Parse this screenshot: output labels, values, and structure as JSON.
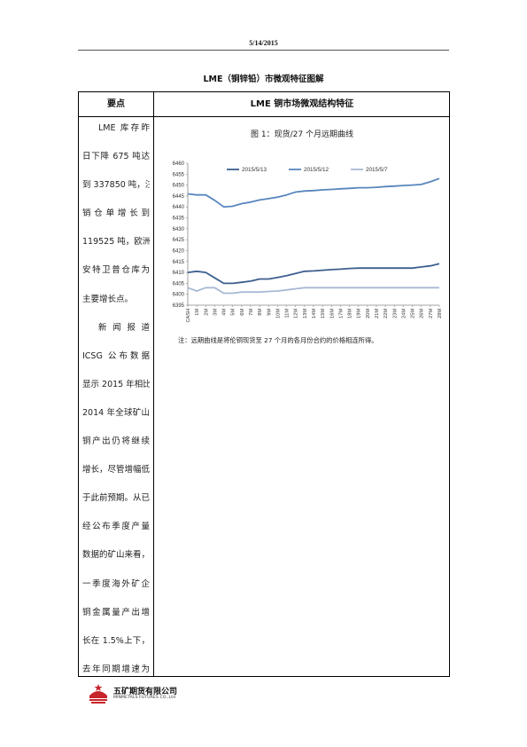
{
  "header": {
    "date": "5/14/2015"
  },
  "title": "LME（铜锌铅）市微观特征图解",
  "table": {
    "left_header": "要点",
    "right_header": "LME 铜市场微观结构特征",
    "left_lines": [
      "LME 库存昨",
      "日下降 675 吨达",
      "到 337850 吨，注",
      "销仓单增长到",
      "119525 吨，欧洲",
      "安特卫普仓库为",
      "主要增长点。",
      "新闻报道",
      "ICSG 公布数据",
      "显示 2015 年相比",
      "2014 年全球矿山",
      "铜产出仍将继续",
      "增长，尽管增幅低",
      "于此前预期。从已",
      "经公布季度产量",
      "数据的矿山来看，",
      "一季度海外矿企",
      "铜金属量产出增",
      "长在 1.5%上下，",
      "去年同期增速为"
    ]
  },
  "figure": {
    "caption": "图 1：现货/27 个月远期曲线",
    "note": "注：远期曲线是将伦铜现货至 27 个月的各月份合约的价格相连所得。"
  },
  "chart_data": {
    "type": "line",
    "categories": [
      "CASH",
      "1M",
      "2M",
      "3M",
      "4M",
      "5M",
      "6M",
      "7M",
      "8M",
      "9M",
      "10M",
      "11M",
      "12M",
      "13M",
      "14M",
      "15M",
      "16M",
      "17M",
      "18M",
      "19M",
      "20M",
      "21M",
      "22M",
      "23M",
      "24M",
      "25M",
      "26M",
      "27M",
      "28M"
    ],
    "ylim": [
      6395,
      6460
    ],
    "yticks": [
      6395,
      6400,
      6405,
      6410,
      6415,
      6420,
      6425,
      6430,
      6435,
      6440,
      6445,
      6450,
      6455,
      6460
    ],
    "grid": false,
    "legend": "top",
    "series": [
      {
        "name": "2015/5/13",
        "color": "#3d5f8f",
        "values": [
          6410,
          6410.5,
          6410,
          6407.5,
          6405,
          6405,
          6405.5,
          6406,
          6407,
          6407,
          6407.7,
          6408.5,
          6409.5,
          6410.5,
          6410.7,
          6411,
          6411.3,
          6411.5,
          6411.8,
          6412,
          6412,
          6412,
          6412,
          6412,
          6412,
          6412,
          6412.5,
          6413,
          6414
        ]
      },
      {
        "name": "2015/5/12",
        "color": "#5886bd",
        "values": [
          6446,
          6445.5,
          6445.5,
          6443,
          6440,
          6440.3,
          6441.5,
          6442.2,
          6443.2,
          6443.8,
          6444.5,
          6445.5,
          6446.8,
          6447.3,
          6447.5,
          6447.8,
          6448,
          6448.3,
          6448.5,
          6448.8,
          6448.8,
          6449,
          6449.3,
          6449.5,
          6449.8,
          6450,
          6450.3,
          6451.5,
          6453
        ]
      },
      {
        "name": "2015/5/7",
        "color": "#a7b9d4",
        "values": [
          6403,
          6401.5,
          6403,
          6403,
          6400.5,
          6400.5,
          6401,
          6401,
          6401,
          6401.3,
          6401.5,
          6402,
          6402.5,
          6403,
          6403,
          6403,
          6403,
          6403,
          6403,
          6403,
          6403,
          6403,
          6403,
          6403,
          6403,
          6403,
          6403,
          6403,
          6403
        ]
      }
    ]
  },
  "footer": {
    "company_cn": "五矿期货有限公司",
    "company_en": "MINMETALS FUTURES CO.,Ltd"
  }
}
